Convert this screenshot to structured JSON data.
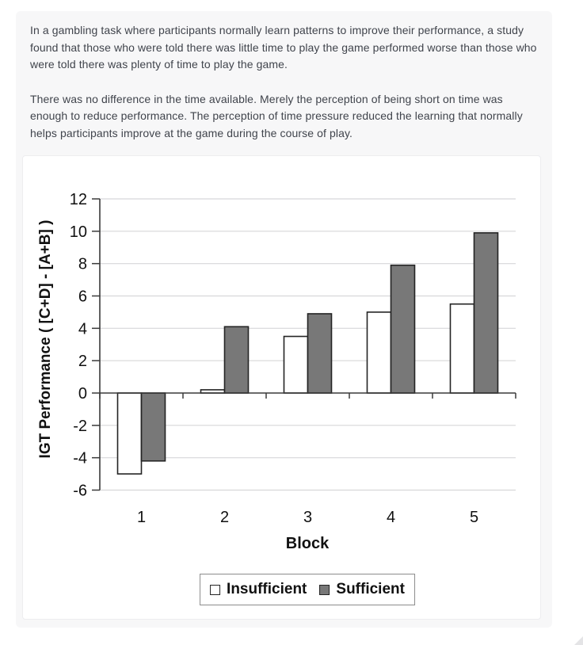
{
  "intro": {
    "paragraphs": [
      "In a gambling task where participants normally learn patterns to improve their performance, a study found that those who were told there was little time to play the game performed worse than those who were told there was plenty of time to play the game.",
      "There was no difference in the time available. Merely the perception of being short on time was enough to reduce performance. The perception of time pressure reduced the learning that normally helps participants improve at the game during the course of play."
    ]
  },
  "chart_data": {
    "type": "bar",
    "title": "",
    "xlabel": "Block",
    "ylabel": "IGT Performance ( [C+D] - [A+B] )",
    "categories": [
      "1",
      "2",
      "3",
      "4",
      "5"
    ],
    "series": [
      {
        "name": "Insufficient",
        "values": [
          -5.0,
          0.2,
          3.5,
          5.0,
          5.5
        ],
        "fill": "#ffffff",
        "stroke": "#242424"
      },
      {
        "name": "Sufficient",
        "values": [
          -4.2,
          4.1,
          4.9,
          7.9,
          9.9
        ],
        "fill": "#787878",
        "stroke": "#242424"
      }
    ],
    "ylim": [
      -6,
      12
    ],
    "ytick_step": 2,
    "grid": true,
    "legend_position": "bottom",
    "colors": {
      "grid": "#d7d7d9",
      "axis": "#3a3a3a",
      "text": "#111111"
    }
  }
}
